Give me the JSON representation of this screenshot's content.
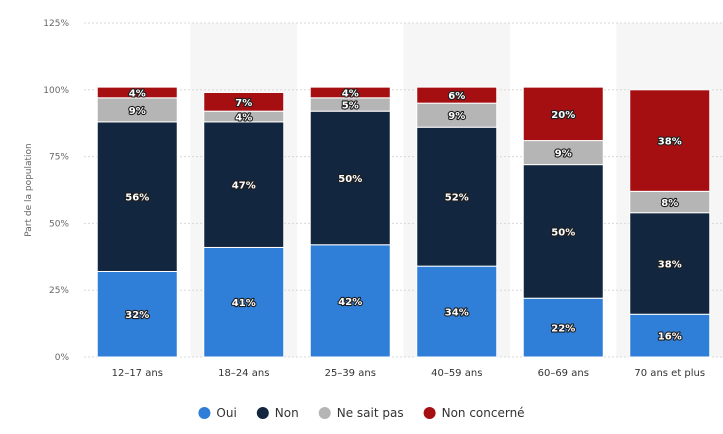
{
  "chart_data": {
    "type": "bar",
    "stacked": true,
    "percent": true,
    "title": "",
    "xlabel": "",
    "ylabel": "Part de la population",
    "ylim": [
      0,
      125
    ],
    "yticks": [
      "0%",
      "25%",
      "50%",
      "75%",
      "100%",
      "125%"
    ],
    "grid": true,
    "legend_position": "bottom",
    "categories": [
      "12–17 ans",
      "18–24 ans",
      "25–39 ans",
      "40–59 ans",
      "60–69 ans",
      "70 ans et plus"
    ],
    "series": [
      {
        "name": "Oui",
        "color": "#2f7ed8",
        "values": [
          32,
          41,
          42,
          34,
          22,
          16
        ]
      },
      {
        "name": "Non",
        "color": "#13263f",
        "values": [
          56,
          47,
          50,
          52,
          50,
          38
        ]
      },
      {
        "name": "Ne sait pas",
        "color": "#b5b5b5",
        "values": [
          9,
          4,
          5,
          9,
          9,
          8
        ]
      },
      {
        "name": "Non concerné",
        "color": "#a50f12",
        "values": [
          4,
          7,
          4,
          6,
          20,
          38
        ]
      }
    ],
    "labels": [
      [
        "32%",
        "41%",
        "42%",
        "34%",
        "22%",
        "16%"
      ],
      [
        "56%",
        "47%",
        "50%",
        "52%",
        "50%",
        "38%"
      ],
      [
        "9%",
        "4%",
        "5%",
        "9%",
        "9%",
        "8%"
      ],
      [
        "4%",
        "7%",
        "4%",
        "6%",
        "20%",
        "38%"
      ]
    ]
  }
}
